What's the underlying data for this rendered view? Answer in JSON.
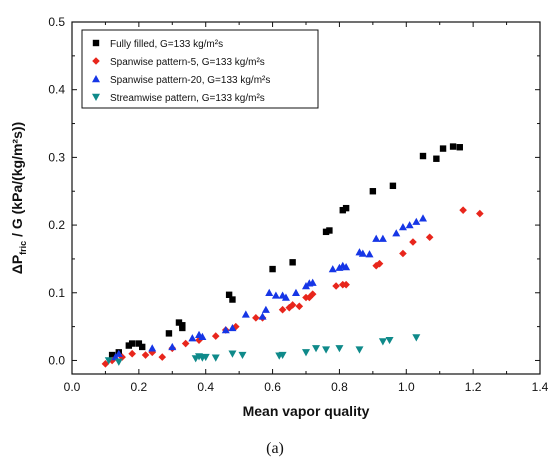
{
  "chart_data": {
    "type": "scatter",
    "xlabel": "Mean vapor quality",
    "ylabel": "ΔP_fric / G (kPa/(kg/m²s))",
    "xlim": [
      0.0,
      1.4
    ],
    "ylim": [
      -0.02,
      0.5
    ],
    "x_ticks": [
      "0.0",
      "0.2",
      "0.4",
      "0.6",
      "0.8",
      "1.0",
      "1.2",
      "1.4"
    ],
    "y_ticks": [
      "0.0",
      "0.1",
      "0.2",
      "0.3",
      "0.4",
      "0.5"
    ],
    "legend_position": "top-left",
    "grid": false,
    "series": [
      {
        "name": "Fully filled, G=133 kg/m²s",
        "marker": "square",
        "color": "#000000",
        "points": [
          [
            0.12,
            0.008
          ],
          [
            0.14,
            0.012
          ],
          [
            0.17,
            0.022
          ],
          [
            0.18,
            0.025
          ],
          [
            0.2,
            0.025
          ],
          [
            0.21,
            0.02
          ],
          [
            0.29,
            0.04
          ],
          [
            0.32,
            0.056
          ],
          [
            0.33,
            0.048
          ],
          [
            0.33,
            0.052
          ],
          [
            0.47,
            0.097
          ],
          [
            0.48,
            0.09
          ],
          [
            0.6,
            0.135
          ],
          [
            0.66,
            0.145
          ],
          [
            0.76,
            0.19
          ],
          [
            0.77,
            0.192
          ],
          [
            0.81,
            0.222
          ],
          [
            0.82,
            0.225
          ],
          [
            0.9,
            0.25
          ],
          [
            0.96,
            0.258
          ],
          [
            1.05,
            0.302
          ],
          [
            1.09,
            0.298
          ],
          [
            1.11,
            0.313
          ],
          [
            1.14,
            0.316
          ],
          [
            1.16,
            0.315
          ]
        ]
      },
      {
        "name": "Spanwise pattern-5, G=133 kg/m²s",
        "marker": "diamond",
        "color": "#e8261c",
        "points": [
          [
            0.1,
            -0.005
          ],
          [
            0.12,
            0.0
          ],
          [
            0.15,
            0.005
          ],
          [
            0.18,
            0.01
          ],
          [
            0.22,
            0.008
          ],
          [
            0.24,
            0.012
          ],
          [
            0.27,
            0.005
          ],
          [
            0.3,
            0.018
          ],
          [
            0.34,
            0.025
          ],
          [
            0.38,
            0.03
          ],
          [
            0.43,
            0.036
          ],
          [
            0.46,
            0.045
          ],
          [
            0.49,
            0.05
          ],
          [
            0.55,
            0.063
          ],
          [
            0.57,
            0.063
          ],
          [
            0.63,
            0.075
          ],
          [
            0.65,
            0.078
          ],
          [
            0.66,
            0.082
          ],
          [
            0.68,
            0.08
          ],
          [
            0.7,
            0.093
          ],
          [
            0.71,
            0.093
          ],
          [
            0.72,
            0.098
          ],
          [
            0.79,
            0.11
          ],
          [
            0.81,
            0.112
          ],
          [
            0.82,
            0.112
          ],
          [
            0.91,
            0.14
          ],
          [
            0.92,
            0.143
          ],
          [
            0.99,
            0.158
          ],
          [
            1.02,
            0.175
          ],
          [
            1.07,
            0.182
          ],
          [
            1.17,
            0.222
          ],
          [
            1.22,
            0.217
          ]
        ]
      },
      {
        "name": "Spanwise pattern-20, G=133 kg/m²s",
        "marker": "triangle-up",
        "color": "#1636e6",
        "points": [
          [
            0.13,
            0.005
          ],
          [
            0.14,
            0.01
          ],
          [
            0.24,
            0.018
          ],
          [
            0.3,
            0.02
          ],
          [
            0.36,
            0.033
          ],
          [
            0.38,
            0.038
          ],
          [
            0.39,
            0.035
          ],
          [
            0.46,
            0.045
          ],
          [
            0.48,
            0.048
          ],
          [
            0.52,
            0.068
          ],
          [
            0.57,
            0.065
          ],
          [
            0.58,
            0.075
          ],
          [
            0.59,
            0.1
          ],
          [
            0.61,
            0.096
          ],
          [
            0.63,
            0.096
          ],
          [
            0.64,
            0.093
          ],
          [
            0.67,
            0.1
          ],
          [
            0.7,
            0.11
          ],
          [
            0.71,
            0.114
          ],
          [
            0.72,
            0.115
          ],
          [
            0.78,
            0.135
          ],
          [
            0.8,
            0.137
          ],
          [
            0.81,
            0.14
          ],
          [
            0.82,
            0.138
          ],
          [
            0.86,
            0.16
          ],
          [
            0.87,
            0.158
          ],
          [
            0.89,
            0.157
          ],
          [
            0.91,
            0.18
          ],
          [
            0.93,
            0.18
          ],
          [
            0.97,
            0.188
          ],
          [
            0.99,
            0.197
          ],
          [
            1.01,
            0.2
          ],
          [
            1.03,
            0.205
          ],
          [
            1.05,
            0.21
          ]
        ]
      },
      {
        "name": "Streamwise pattern, G=133 kg/m²s",
        "marker": "triangle-down",
        "color": "#0f8a8a",
        "points": [
          [
            0.11,
            0.0
          ],
          [
            0.14,
            -0.002
          ],
          [
            0.37,
            0.003
          ],
          [
            0.38,
            0.006
          ],
          [
            0.39,
            0.004
          ],
          [
            0.4,
            0.005
          ],
          [
            0.43,
            0.004
          ],
          [
            0.48,
            0.01
          ],
          [
            0.51,
            0.008
          ],
          [
            0.62,
            0.007
          ],
          [
            0.63,
            0.008
          ],
          [
            0.7,
            0.012
          ],
          [
            0.73,
            0.018
          ],
          [
            0.76,
            0.016
          ],
          [
            0.8,
            0.018
          ],
          [
            0.86,
            0.016
          ],
          [
            0.93,
            0.028
          ],
          [
            0.95,
            0.03
          ],
          [
            1.03,
            0.034
          ]
        ]
      }
    ]
  },
  "caption": "(a)"
}
